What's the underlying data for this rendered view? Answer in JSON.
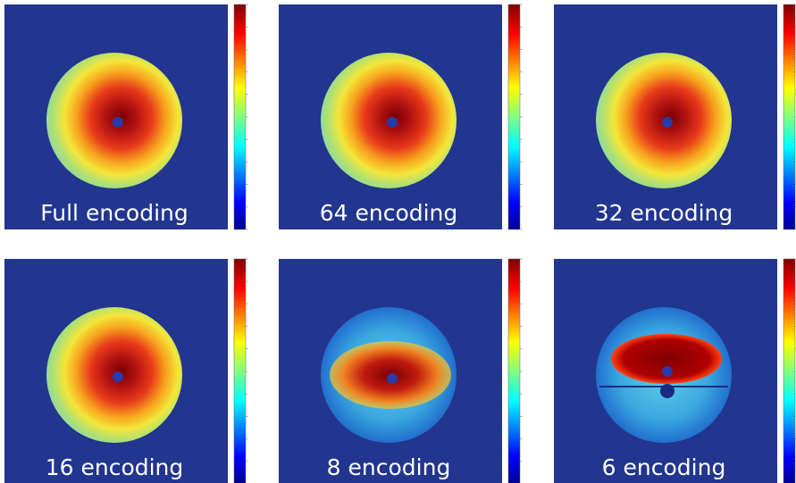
{
  "panels": [
    {
      "label": "Full encoding"
    },
    {
      "label": "64 encoding"
    },
    {
      "label": "32 encoding"
    },
    {
      "label": "16 encoding"
    },
    {
      "label": "8 encoding"
    },
    {
      "label": "6 encoding"
    }
  ]
}
